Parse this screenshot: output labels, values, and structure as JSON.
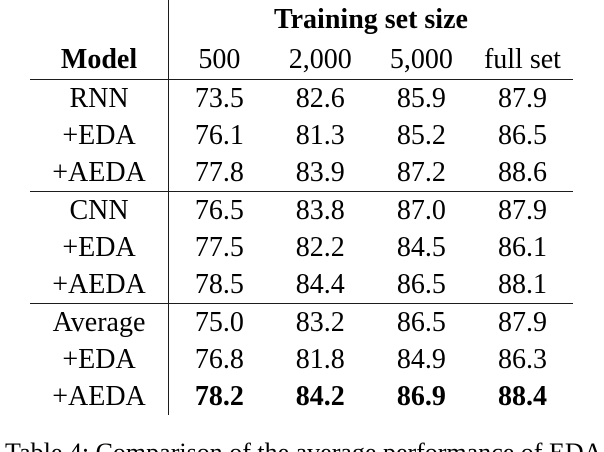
{
  "table": {
    "title": "Training set size",
    "model_header": "Model",
    "col_headers": [
      "500",
      "2,000",
      "5,000",
      "full set"
    ],
    "rows": [
      {
        "label": "RNN",
        "values": [
          "73.5",
          "82.6",
          "85.9",
          "87.9"
        ]
      },
      {
        "label": "+EDA",
        "values": [
          "76.1",
          "81.3",
          "85.2",
          "86.5"
        ]
      },
      {
        "label": "+AEDA",
        "values": [
          "77.8",
          "83.9",
          "87.2",
          "88.6"
        ]
      },
      {
        "label": "CNN",
        "values": [
          "76.5",
          "83.8",
          "87.0",
          "87.9"
        ]
      },
      {
        "label": "+EDA",
        "values": [
          "77.5",
          "82.2",
          "84.5",
          "86.1"
        ]
      },
      {
        "label": "+AEDA",
        "values": [
          "78.5",
          "84.4",
          "86.5",
          "88.1"
        ]
      },
      {
        "label": "Average",
        "values": [
          "75.0",
          "83.2",
          "86.5",
          "87.9"
        ]
      },
      {
        "label": "+EDA",
        "values": [
          "76.8",
          "81.8",
          "84.9",
          "86.3"
        ]
      },
      {
        "label": "+AEDA",
        "values": [
          "78.2",
          "84.2",
          "86.9",
          "88.4"
        ]
      }
    ]
  },
  "caption": {
    "text": "Table 4: Comparison of the average performance of EDA and"
  }
}
